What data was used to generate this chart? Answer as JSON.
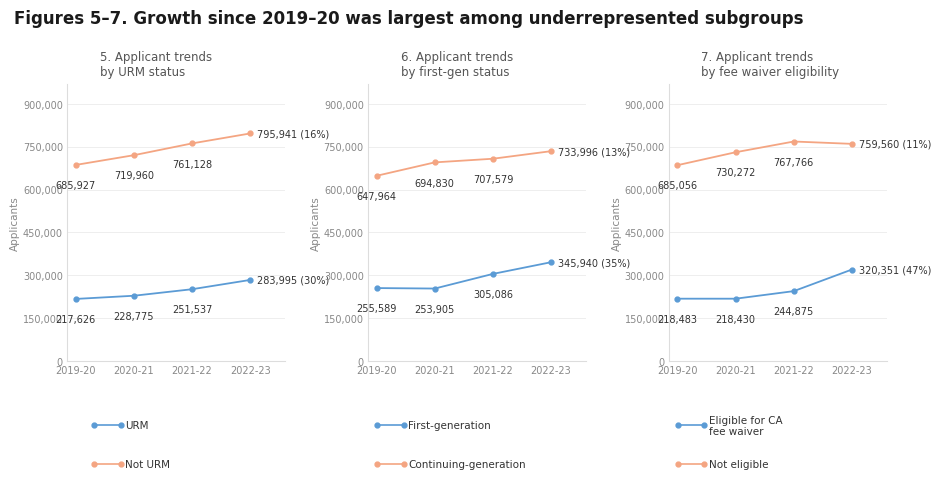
{
  "title": "Figures 5–7. Growth since 2019–20 was largest among underrepresented subgroups",
  "years": [
    "2019-20",
    "2020-21",
    "2021-22",
    "2022-23"
  ],
  "chart5": {
    "subtitle1": "5. Applicant trends",
    "subtitle2": "by URM status",
    "urm": [
      217626,
      228775,
      251537,
      283995
    ],
    "not_urm": [
      685927,
      719960,
      761128,
      795941
    ],
    "urm_label": "283,995 (30%)",
    "not_urm_label": "795,941 (16%)"
  },
  "chart6": {
    "subtitle1": "6. Applicant trends",
    "subtitle2": "by first-gen status",
    "first_gen": [
      255589,
      253905,
      305086,
      345940
    ],
    "cont_gen": [
      647964,
      694830,
      707579,
      733996
    ],
    "first_gen_label": "345,940 (35%)",
    "cont_gen_label": "733,996 (13%)"
  },
  "chart7": {
    "subtitle1": "7. Applicant trends",
    "subtitle2": "by fee waiver eligibility",
    "eligible": [
      218483,
      218430,
      244875,
      320351
    ],
    "not_eligible": [
      685056,
      730272,
      767766,
      759560
    ],
    "eligible_label": "320,351 (47%)",
    "not_eligible_label": "759,560 (11%)"
  },
  "blue_color": "#5b9bd5",
  "salmon_color": "#f4a582",
  "ylabel": "Applicants",
  "yticks": [
    0,
    150000,
    300000,
    450000,
    600000,
    750000,
    900000
  ],
  "ytick_labels": [
    "0",
    "150,000",
    "300,000",
    "450,000",
    "600,000",
    "750,000",
    "900,000"
  ],
  "background_color": "#ffffff",
  "title_fontsize": 12,
  "subtitle_fontsize": 8.5,
  "label_fontsize": 7,
  "legend_fontsize": 7.5
}
